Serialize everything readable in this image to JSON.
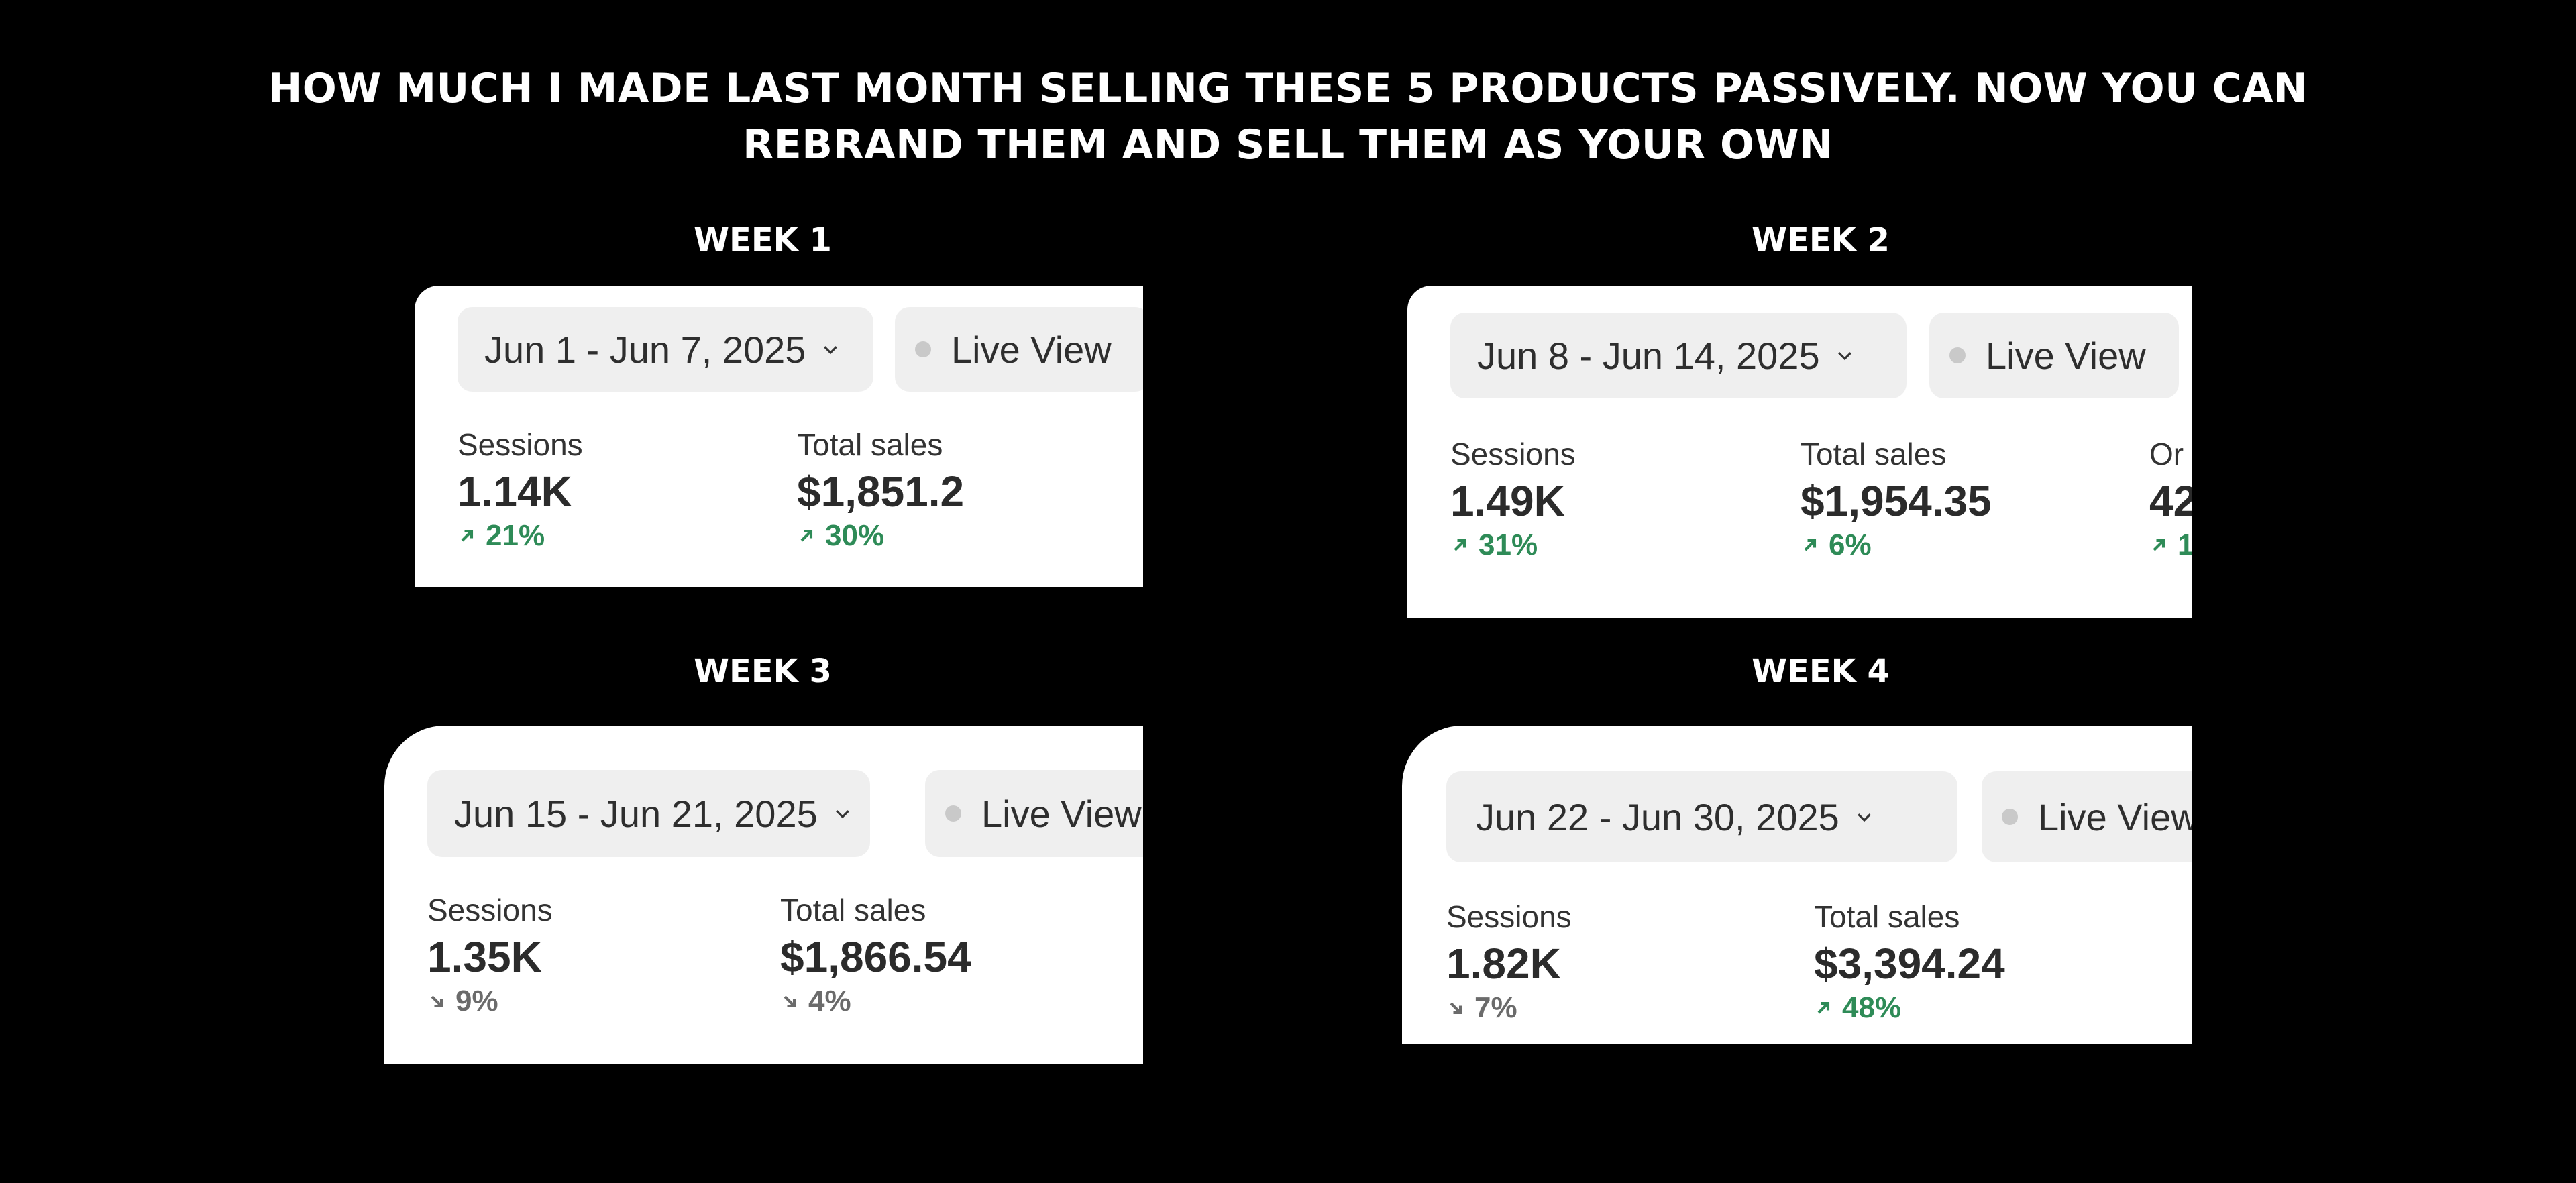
{
  "headline": {
    "line1": "HOW MUCH I MADE LAST MONTH SELLING THESE 5 PRODUCTS PASSIVELY. NOW YOU CAN",
    "line2": "REBRAND THEM AND SELL THEM AS YOUR OWN"
  },
  "weeks": [
    {
      "title": "WEEK 1",
      "date_range": "Jun 1 - Jun 7, 2025",
      "live_view": "Live View",
      "sessions": {
        "label": "Sessions",
        "value": "1.14K",
        "change": "21%",
        "direction": "up"
      },
      "total_sales": {
        "label": "Total sales",
        "value": "$1,851.2",
        "change": "30%",
        "direction": "up"
      }
    },
    {
      "title": "WEEK 2",
      "date_range": "Jun 8 - Jun 14, 2025",
      "live_view": "Live View",
      "sessions": {
        "label": "Sessions",
        "value": "1.49K",
        "change": "31%",
        "direction": "up"
      },
      "total_sales": {
        "label": "Total sales",
        "value": "$1,954.35",
        "change": "6%",
        "direction": "up"
      },
      "orders_partial": {
        "label": "Or",
        "value": "42",
        "change": "1"
      }
    },
    {
      "title": "WEEK 3",
      "date_range": "Jun 15 - Jun 21, 2025",
      "live_view": "Live View",
      "sessions": {
        "label": "Sessions",
        "value": "1.35K",
        "change": "9%",
        "direction": "down"
      },
      "total_sales": {
        "label": "Total sales",
        "value": "$1,866.54",
        "change": "4%",
        "direction": "down"
      }
    },
    {
      "title": "WEEK 4",
      "date_range": "Jun 22 - Jun 30, 2025",
      "live_view": "Live View",
      "sessions": {
        "label": "Sessions",
        "value": "1.82K",
        "change": "7%",
        "direction": "down"
      },
      "total_sales": {
        "label": "Total sales",
        "value": "$3,394.24",
        "change": "48%",
        "direction": "up"
      }
    }
  ],
  "colors": {
    "up": "#2e8b57",
    "down": "#6b6b6b",
    "pill_bg": "#efefef"
  },
  "icons": {
    "chevron": "chevron-down-icon",
    "arrow_up": "arrow-up-right-icon",
    "arrow_down": "arrow-down-right-icon",
    "live_dot": "status-dot-icon"
  }
}
